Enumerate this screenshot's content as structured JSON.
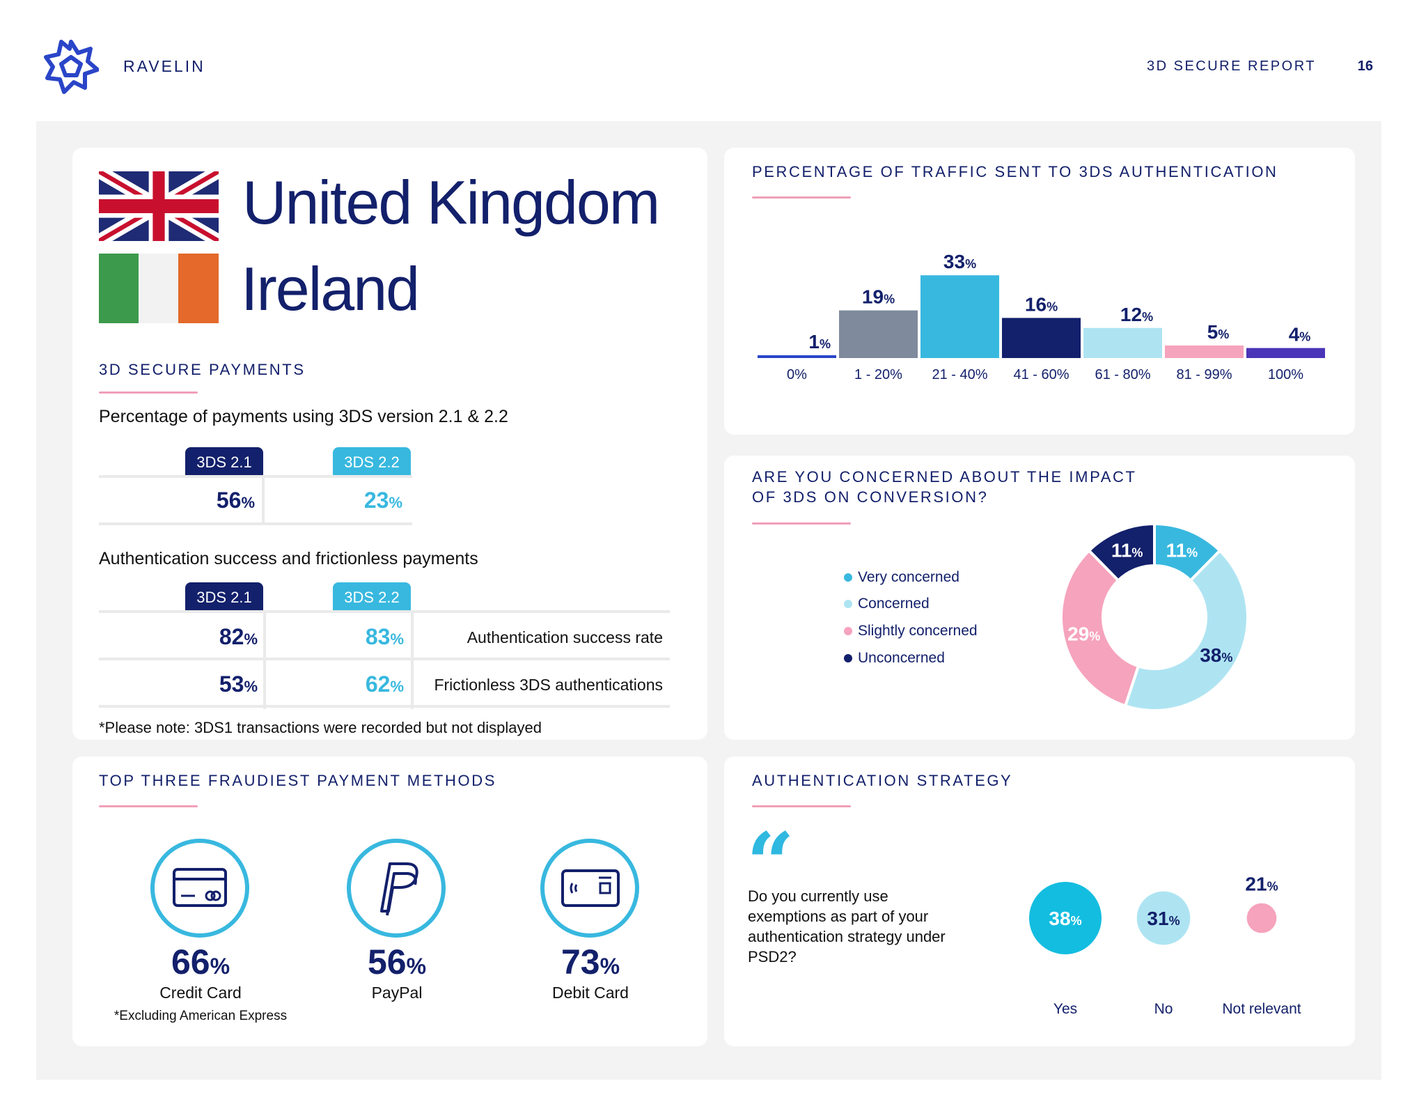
{
  "header": {
    "brand": "RAVELIN",
    "report_title": "3D SECURE REPORT",
    "page_number": "16"
  },
  "colors": {
    "navy": "#13206b",
    "cyan": "#38b8df",
    "light_cyan": "#aee4f2",
    "pink": "#f6a3bd",
    "grey": "#7f8a9c",
    "purple": "#4a35b8",
    "royal_blue": "#2a45c8",
    "rule_pink": "#f0a0b8"
  },
  "countries": {
    "first": "United Kingdom",
    "second": "Ireland"
  },
  "secure_payments": {
    "title": "3D SECURE PAYMENTS",
    "version_subhead": "Percentage of payments using 3DS version 2.1 & 2.2",
    "version_labels": [
      "3DS 2.1",
      "3DS 2.2"
    ],
    "version_values": [
      "56",
      "23"
    ],
    "auth_subhead": "Authentication success and frictionless payments",
    "auth_labels": [
      "3DS 2.1",
      "3DS 2.2"
    ],
    "rows": [
      {
        "v21": "82",
        "v22": "83",
        "label": "Authentication success rate"
      },
      {
        "v21": "53",
        "v22": "62",
        "label": "Frictionless 3DS authentications"
      }
    ],
    "pct_symbol": "%",
    "note": "*Please note: 3DS1 transactions were recorded but not displayed"
  },
  "traffic": {
    "title": "PERCENTAGE OF TRAFFIC SENT TO 3DS AUTHENTICATION"
  },
  "concern": {
    "title_line1": "ARE YOU CONCERNED ABOUT THE IMPACT",
    "title_line2": "OF 3DS ON CONVERSION?",
    "legend": [
      "Very concerned",
      "Concerned",
      "Slightly concerned",
      "Unconcerned"
    ]
  },
  "fraud": {
    "title": "TOP THREE FRAUDIEST PAYMENT METHODS",
    "items": [
      {
        "value": "66",
        "label": "Credit Card",
        "icon": "credit-card-icon"
      },
      {
        "value": "56",
        "label": "PayPal",
        "icon": "paypal-icon"
      },
      {
        "value": "73",
        "label": "Debit Card",
        "icon": "contactless-card-icon"
      }
    ],
    "note": "*Excluding American Express"
  },
  "strategy": {
    "title": "AUTHENTICATION STRATEGY",
    "quote_mark": "“",
    "question": "Do you currently use exemptions as part of your authentication strategy under PSD2?",
    "answers": [
      {
        "value": "38",
        "label": "Yes"
      },
      {
        "value": "31",
        "label": "No"
      },
      {
        "value": "21",
        "label": "Not relevant"
      }
    ]
  },
  "chart_data": [
    {
      "type": "bar",
      "categories": [
        "0%",
        "1 - 20%",
        "21 - 40%",
        "41 - 60%",
        "61 - 80%",
        "81 - 99%",
        "100%"
      ],
      "values": [
        1,
        19,
        33,
        16,
        12,
        5,
        4
      ],
      "colors": [
        "#2a45c8",
        "#7f8a9c",
        "#38b8df",
        "#13206b",
        "#aee4f2",
        "#f6a3bd",
        "#4a35b8"
      ],
      "value_suffix": "%"
    },
    {
      "type": "pie",
      "style": "donut",
      "categories": [
        "Very concerned",
        "Concerned",
        "Slightly concerned",
        "Unconcerned"
      ],
      "values": [
        11,
        38,
        29,
        11
      ],
      "colors": [
        "#38b8df",
        "#aee4f2",
        "#f6a3bd",
        "#13206b"
      ],
      "value_suffix": "%"
    },
    {
      "type": "scatter",
      "style": "bubble",
      "categories": [
        "Yes",
        "No",
        "Not relevant"
      ],
      "values": [
        38,
        31,
        21
      ],
      "colors": [
        "#13bde0",
        "#aee4f2",
        "#f6a3bd"
      ],
      "value_suffix": "%"
    }
  ]
}
